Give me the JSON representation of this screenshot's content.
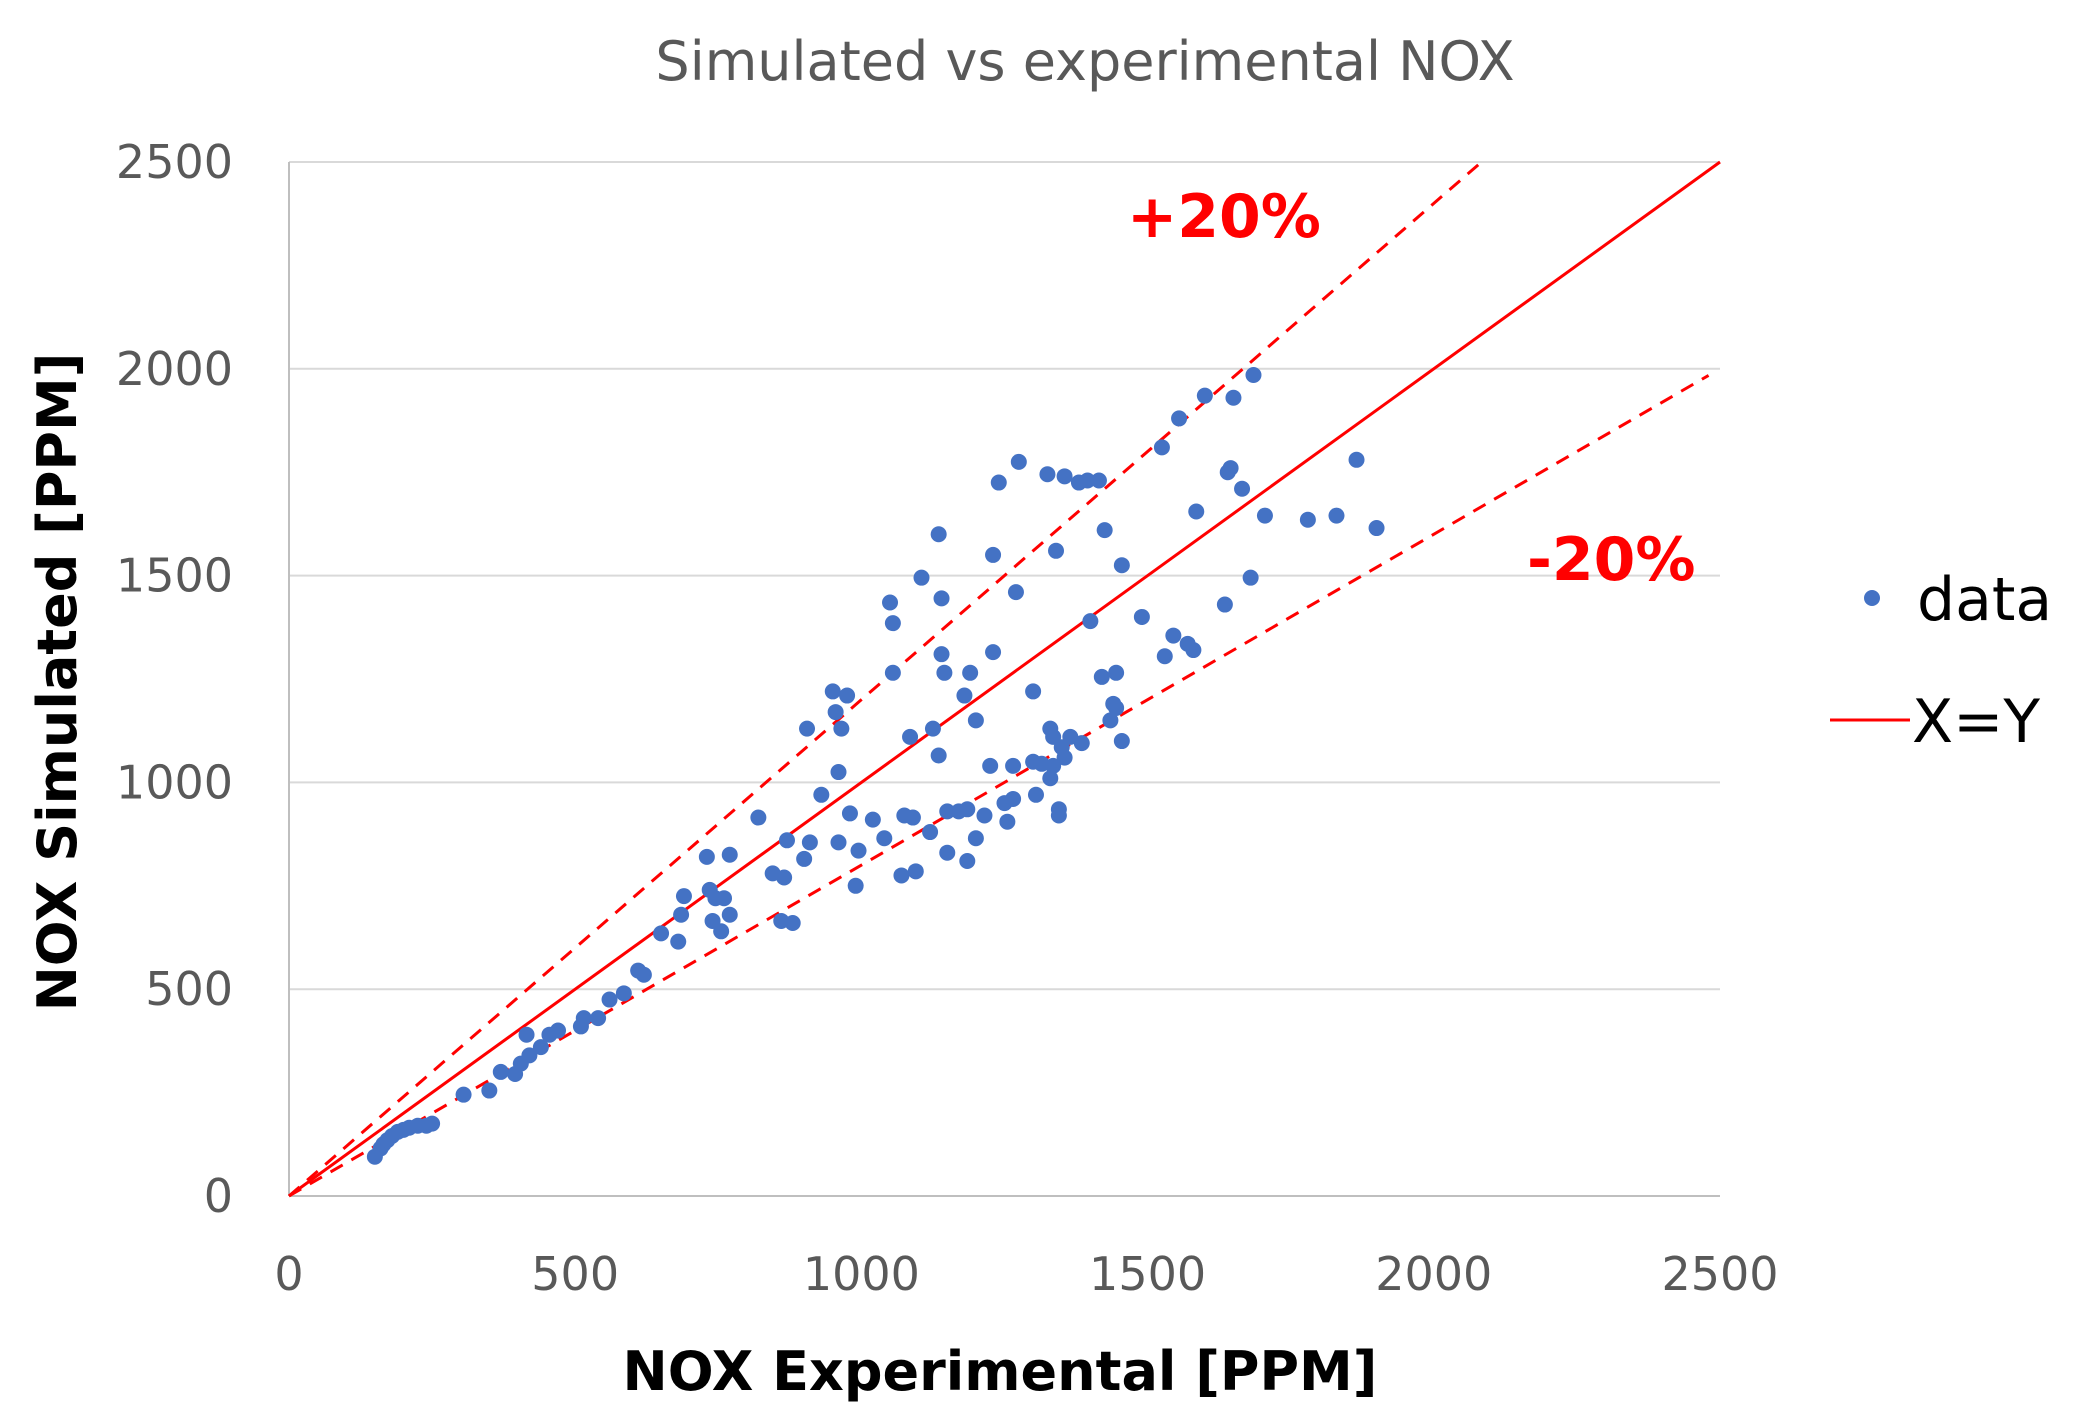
{
  "chart_data": {
    "type": "scatter",
    "title": "Simulated vs experimental NOX",
    "xlabel": "NOX Experimental [PPM]",
    "ylabel": "NOX Simulated [PPM]",
    "xlim": [
      0,
      2500
    ],
    "ylim": [
      0,
      2500
    ],
    "xticks": [
      0,
      500,
      1000,
      1500,
      2000,
      2500
    ],
    "yticks": [
      0,
      500,
      1000,
      1500,
      2000,
      2500
    ],
    "grid": "horizontal",
    "colors": {
      "data": "#4472C4",
      "line": "#FF0000",
      "grid": "#D9D9D9",
      "axis": "#BFBFBF"
    },
    "series": [
      {
        "name": "data",
        "type": "scatter",
        "points": [
          [
            150,
            95
          ],
          [
            160,
            115
          ],
          [
            165,
            125
          ],
          [
            172,
            135
          ],
          [
            180,
            145
          ],
          [
            190,
            155
          ],
          [
            200,
            160
          ],
          [
            210,
            165
          ],
          [
            225,
            170
          ],
          [
            240,
            170
          ],
          [
            250,
            175
          ],
          [
            305,
            245
          ],
          [
            350,
            255
          ],
          [
            370,
            300
          ],
          [
            395,
            295
          ],
          [
            405,
            320
          ],
          [
            415,
            390
          ],
          [
            420,
            340
          ],
          [
            440,
            360
          ],
          [
            455,
            390
          ],
          [
            470,
            400
          ],
          [
            510,
            410
          ],
          [
            515,
            430
          ],
          [
            540,
            430
          ],
          [
            560,
            475
          ],
          [
            585,
            490
          ],
          [
            610,
            545
          ],
          [
            620,
            535
          ],
          [
            650,
            635
          ],
          [
            680,
            615
          ],
          [
            685,
            680
          ],
          [
            690,
            725
          ],
          [
            730,
            820
          ],
          [
            735,
            740
          ],
          [
            740,
            665
          ],
          [
            745,
            720
          ],
          [
            755,
            640
          ],
          [
            760,
            720
          ],
          [
            770,
            680
          ],
          [
            770,
            825
          ],
          [
            820,
            915
          ],
          [
            845,
            780
          ],
          [
            860,
            665
          ],
          [
            865,
            770
          ],
          [
            870,
            860
          ],
          [
            880,
            660
          ],
          [
            900,
            815
          ],
          [
            905,
            1130
          ],
          [
            910,
            855
          ],
          [
            930,
            970
          ],
          [
            950,
            1220
          ],
          [
            955,
            1170
          ],
          [
            960,
            1025
          ],
          [
            960,
            855
          ],
          [
            965,
            1130
          ],
          [
            975,
            1210
          ],
          [
            980,
            925
          ],
          [
            990,
            750
          ],
          [
            995,
            835
          ],
          [
            1020,
            910
          ],
          [
            1040,
            865
          ],
          [
            1050,
            1435
          ],
          [
            1055,
            1385
          ],
          [
            1055,
            1265
          ],
          [
            1070,
            775
          ],
          [
            1075,
            920
          ],
          [
            1085,
            1110
          ],
          [
            1090,
            915
          ],
          [
            1095,
            785
          ],
          [
            1105,
            1495
          ],
          [
            1120,
            880
          ],
          [
            1125,
            1130
          ],
          [
            1135,
            1600
          ],
          [
            1135,
            1065
          ],
          [
            1140,
            1310
          ],
          [
            1140,
            1445
          ],
          [
            1145,
            1265
          ],
          [
            1150,
            930
          ],
          [
            1150,
            830
          ],
          [
            1170,
            930
          ],
          [
            1180,
            1210
          ],
          [
            1185,
            810
          ],
          [
            1185,
            935
          ],
          [
            1190,
            1265
          ],
          [
            1200,
            1150
          ],
          [
            1200,
            865
          ],
          [
            1215,
            920
          ],
          [
            1225,
            1040
          ],
          [
            1230,
            1550
          ],
          [
            1230,
            1315
          ],
          [
            1240,
            1725
          ],
          [
            1250,
            950
          ],
          [
            1255,
            905
          ],
          [
            1265,
            1040
          ],
          [
            1265,
            960
          ],
          [
            1270,
            1460
          ],
          [
            1275,
            1775
          ],
          [
            1300,
            1220
          ],
          [
            1300,
            1050
          ],
          [
            1305,
            970
          ],
          [
            1315,
            1045
          ],
          [
            1325,
            1745
          ],
          [
            1330,
            1130
          ],
          [
            1330,
            1010
          ],
          [
            1335,
            1110
          ],
          [
            1335,
            1040
          ],
          [
            1340,
            1560
          ],
          [
            1345,
            935
          ],
          [
            1345,
            920
          ],
          [
            1350,
            1085
          ],
          [
            1355,
            1740
          ],
          [
            1355,
            1060
          ],
          [
            1365,
            1110
          ],
          [
            1380,
            1725
          ],
          [
            1385,
            1095
          ],
          [
            1395,
            1730
          ],
          [
            1400,
            1390
          ],
          [
            1415,
            1730
          ],
          [
            1420,
            1255
          ],
          [
            1425,
            1610
          ],
          [
            1435,
            1150
          ],
          [
            1440,
            1190
          ],
          [
            1445,
            1180
          ],
          [
            1445,
            1265
          ],
          [
            1455,
            1100
          ],
          [
            1455,
            1525
          ],
          [
            1490,
            1400
          ],
          [
            1525,
            1810
          ],
          [
            1530,
            1305
          ],
          [
            1545,
            1355
          ],
          [
            1555,
            1880
          ],
          [
            1570,
            1335
          ],
          [
            1580,
            1320
          ],
          [
            1585,
            1655
          ],
          [
            1600,
            1935
          ],
          [
            1635,
            1430
          ],
          [
            1640,
            1750
          ],
          [
            1645,
            1760
          ],
          [
            1650,
            1930
          ],
          [
            1665,
            1710
          ],
          [
            1680,
            1495
          ],
          [
            1685,
            1985
          ],
          [
            1705,
            1645
          ],
          [
            1780,
            1635
          ],
          [
            1830,
            1645
          ],
          [
            1865,
            1780
          ],
          [
            1900,
            1615
          ]
        ]
      },
      {
        "name": "X=Y",
        "type": "line",
        "slope": 1.0,
        "x_range": [
          0,
          2500
        ]
      },
      {
        "name": "+20%",
        "type": "line",
        "style": "dashed",
        "slope": 1.2,
        "x_range": [
          0,
          2085
        ]
      },
      {
        "name": "-20%",
        "type": "line",
        "style": "dashed",
        "slope": 0.8,
        "x_range": [
          0,
          2480
        ]
      }
    ],
    "annotations": [
      {
        "text": "+20%",
        "color": "#FF0000"
      },
      {
        "text": "-20%",
        "color": "#FF0000"
      }
    ],
    "legend": {
      "position": "right",
      "entries": [
        {
          "label": "data",
          "marker": "dot"
        },
        {
          "label": "X=Y",
          "marker": "line"
        }
      ]
    }
  }
}
